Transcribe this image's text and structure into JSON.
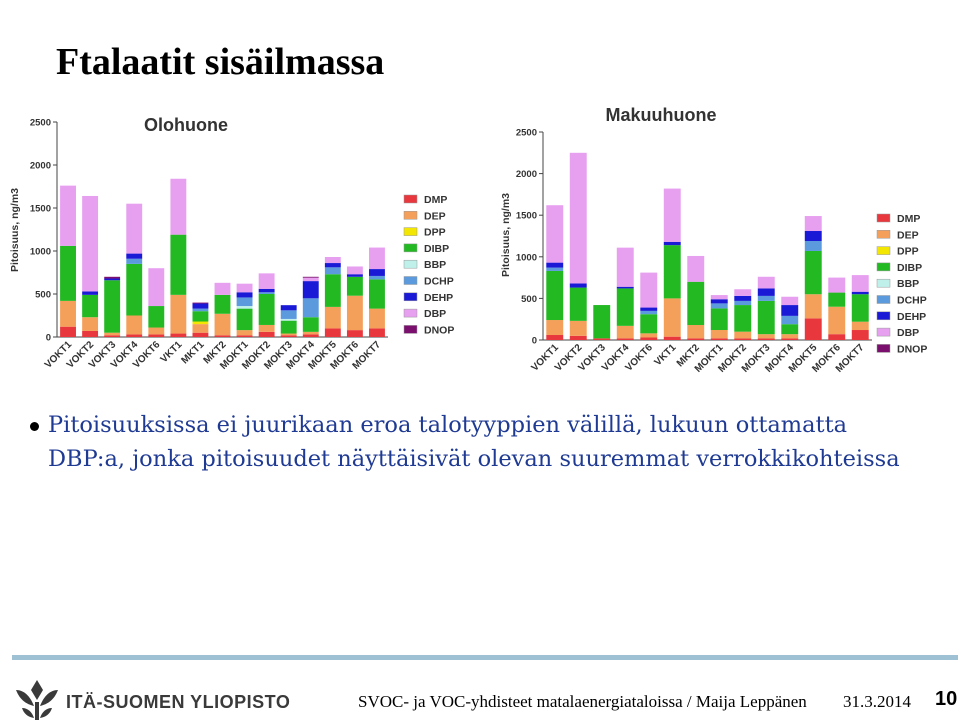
{
  "slide": {
    "title": "Ftalaatit sisäilmassa",
    "bullet": "Pitoisuuksissa ei juurikaan eroa talotyyppien välillä, lukuun ottamatta DBP:a, jonka pitoisuudet näyttäisivät olevan suuremmat verrokkikohteissa",
    "logo_text": "ITÄ-SUOMEN YLIOPISTO",
    "footer_text": "SVOC- ja VOC-yhdisteet matalaenergiataloissa / Maija Leppänen",
    "date": "31.3.2014",
    "page_number": "10"
  },
  "chart_data": [
    {
      "type": "bar",
      "stacked": true,
      "title": "Olohuone",
      "ylabel": "Pitoisuus, ng/m3",
      "ylim": [
        0,
        2500
      ],
      "yticks": [
        0,
        500,
        1000,
        1500,
        2000,
        2500
      ],
      "legend_position": "right",
      "categories": [
        "VOKT1",
        "VOKT2",
        "VOKT3",
        "VOKT4",
        "VOKT6",
        "VKT1",
        "MKT1",
        "MKT2",
        "MOKT1",
        "MOKT2",
        "MOKT3",
        "MOKT4",
        "MOKT5",
        "MOKT6",
        "MOKT7"
      ],
      "series": [
        {
          "name": "DMP",
          "color": "#e8383d",
          "values": [
            120,
            70,
            20,
            30,
            30,
            40,
            50,
            20,
            20,
            60,
            20,
            30,
            100,
            80,
            100
          ]
        },
        {
          "name": "DEP",
          "color": "#f5a05a",
          "values": [
            300,
            160,
            30,
            220,
            80,
            450,
            100,
            250,
            60,
            80,
            20,
            30,
            250,
            400,
            230
          ]
        },
        {
          "name": "DPP",
          "color": "#f3e600",
          "values": [
            0,
            0,
            0,
            0,
            0,
            0,
            30,
            0,
            0,
            0,
            0,
            0,
            0,
            0,
            0
          ]
        },
        {
          "name": "DIBP",
          "color": "#22b922",
          "values": [
            640,
            260,
            610,
            600,
            250,
            700,
            120,
            220,
            250,
            360,
            150,
            170,
            380,
            220,
            340
          ]
        },
        {
          "name": "BBP",
          "color": "#bff0ea",
          "values": [
            0,
            0,
            0,
            0,
            0,
            0,
            0,
            0,
            30,
            0,
            20,
            0,
            0,
            0,
            0
          ]
        },
        {
          "name": "DCHP",
          "color": "#5b9bdd",
          "values": [
            0,
            0,
            0,
            60,
            0,
            0,
            30,
            0,
            100,
            20,
            100,
            220,
            80,
            0,
            40
          ]
        },
        {
          "name": "DEHP",
          "color": "#1a1ad6",
          "values": [
            0,
            40,
            20,
            60,
            0,
            0,
            60,
            0,
            60,
            40,
            60,
            200,
            50,
            30,
            80
          ]
        },
        {
          "name": "DBP",
          "color": "#e79ff0",
          "values": [
            700,
            1110,
            0,
            580,
            440,
            650,
            0,
            140,
            100,
            180,
            0,
            40,
            70,
            90,
            250
          ]
        },
        {
          "name": "DNOP",
          "color": "#7b0f6e",
          "values": [
            0,
            0,
            20,
            0,
            0,
            0,
            10,
            0,
            0,
            0,
            0,
            10,
            0,
            0,
            0
          ]
        }
      ]
    },
    {
      "type": "bar",
      "stacked": true,
      "title": "Makuuhuone",
      "ylabel": "Pitoisuus, ng/m3",
      "ylim": [
        0,
        2500
      ],
      "yticks": [
        0,
        500,
        1000,
        1500,
        2000,
        2500
      ],
      "legend_position": "right",
      "categories": [
        "VOKT1",
        "VOKT2",
        "VOKT3",
        "VOKT4",
        "VOKT6",
        "VKT1",
        "MKT2",
        "MOKT1",
        "MOKT2",
        "MOKT3",
        "MOKT4",
        "MOKT5",
        "MOKT6",
        "MOKT7"
      ],
      "series": [
        {
          "name": "DMP",
          "color": "#e8383d",
          "values": [
            60,
            50,
            20,
            20,
            30,
            40,
            20,
            20,
            20,
            20,
            20,
            260,
            70,
            120
          ]
        },
        {
          "name": "DEP",
          "color": "#f5a05a",
          "values": [
            180,
            180,
            0,
            150,
            50,
            460,
            160,
            100,
            80,
            50,
            50,
            290,
            330,
            100
          ]
        },
        {
          "name": "DPP",
          "color": "#f3e600",
          "values": [
            0,
            0,
            0,
            0,
            0,
            0,
            0,
            0,
            0,
            0,
            0,
            0,
            0,
            0
          ]
        },
        {
          "name": "DIBP",
          "color": "#22b922",
          "values": [
            590,
            400,
            400,
            450,
            230,
            640,
            520,
            260,
            320,
            400,
            120,
            520,
            170,
            330
          ]
        },
        {
          "name": "BBP",
          "color": "#bff0ea",
          "values": [
            0,
            0,
            0,
            0,
            0,
            0,
            0,
            0,
            0,
            0,
            0,
            0,
            0,
            0
          ]
        },
        {
          "name": "DCHP",
          "color": "#5b9bdd",
          "values": [
            40,
            0,
            0,
            0,
            40,
            0,
            0,
            60,
            50,
            60,
            100,
            120,
            0,
            0
          ]
        },
        {
          "name": "DEHP",
          "color": "#1a1ad6",
          "values": [
            60,
            50,
            0,
            20,
            40,
            40,
            0,
            50,
            60,
            90,
            130,
            120,
            0,
            30
          ]
        },
        {
          "name": "DBP",
          "color": "#e79ff0",
          "values": [
            690,
            1570,
            0,
            470,
            420,
            640,
            310,
            50,
            80,
            140,
            100,
            180,
            180,
            200
          ]
        },
        {
          "name": "DNOP",
          "color": "#7b0f6e",
          "values": [
            0,
            0,
            0,
            0,
            0,
            0,
            0,
            0,
            0,
            0,
            0,
            0,
            0,
            0
          ]
        }
      ]
    }
  ]
}
